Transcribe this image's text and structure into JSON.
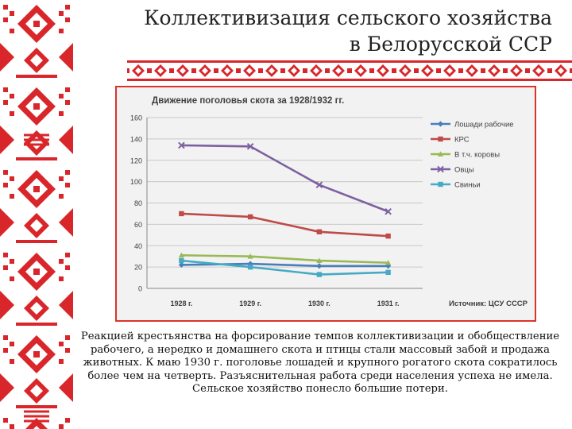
{
  "slide": {
    "title_line1": "Коллективизация сельского хозяйства",
    "title_line2": "в Белорусской ССР",
    "body_text": "Реакцией крестьянства на форсирование темпов коллективизации и обобществление рабочего, а нередко и домашнего скота и птицы стали массовый забой и продажа животных. К маю 1930 г. поголовье лошадей и крупного рогатого скота сократилось более чем на четверть. Разъяснительная работа среди населения успеха не имела. Сельское хозяйство понесло большие потери."
  },
  "colors": {
    "ornament": "#d8262b",
    "frame": "#d9342b"
  },
  "chart_data": {
    "type": "line",
    "title": "Движение поголовья скота за 1928/1932 гг.",
    "source_label": "Источник: ЦСУ СССР",
    "categories": [
      "1928 г.",
      "1929 г.",
      "1930 г.",
      "1931 г."
    ],
    "ylim": [
      0,
      160
    ],
    "yticks": [
      0,
      20,
      40,
      60,
      80,
      100,
      120,
      140,
      160
    ],
    "grid": true,
    "legend_position": "right",
    "series": [
      {
        "name": "Лошади рабочие",
        "color": "#4a7ebb",
        "marker": "diamond",
        "values": [
          22,
          23,
          21,
          21
        ]
      },
      {
        "name": "КРС",
        "color": "#be4b48",
        "marker": "square",
        "values": [
          70,
          67,
          53,
          49
        ]
      },
      {
        "name": "В т.ч. коровы",
        "color": "#98b954",
        "marker": "triangle",
        "values": [
          31,
          30,
          26,
          24
        ]
      },
      {
        "name": "Овцы",
        "color": "#7d60a0",
        "marker": "x",
        "values": [
          134,
          133,
          97,
          72
        ]
      },
      {
        "name": "Свиньи",
        "color": "#46aac5",
        "marker": "square",
        "values": [
          26,
          20,
          13,
          15
        ]
      }
    ]
  }
}
